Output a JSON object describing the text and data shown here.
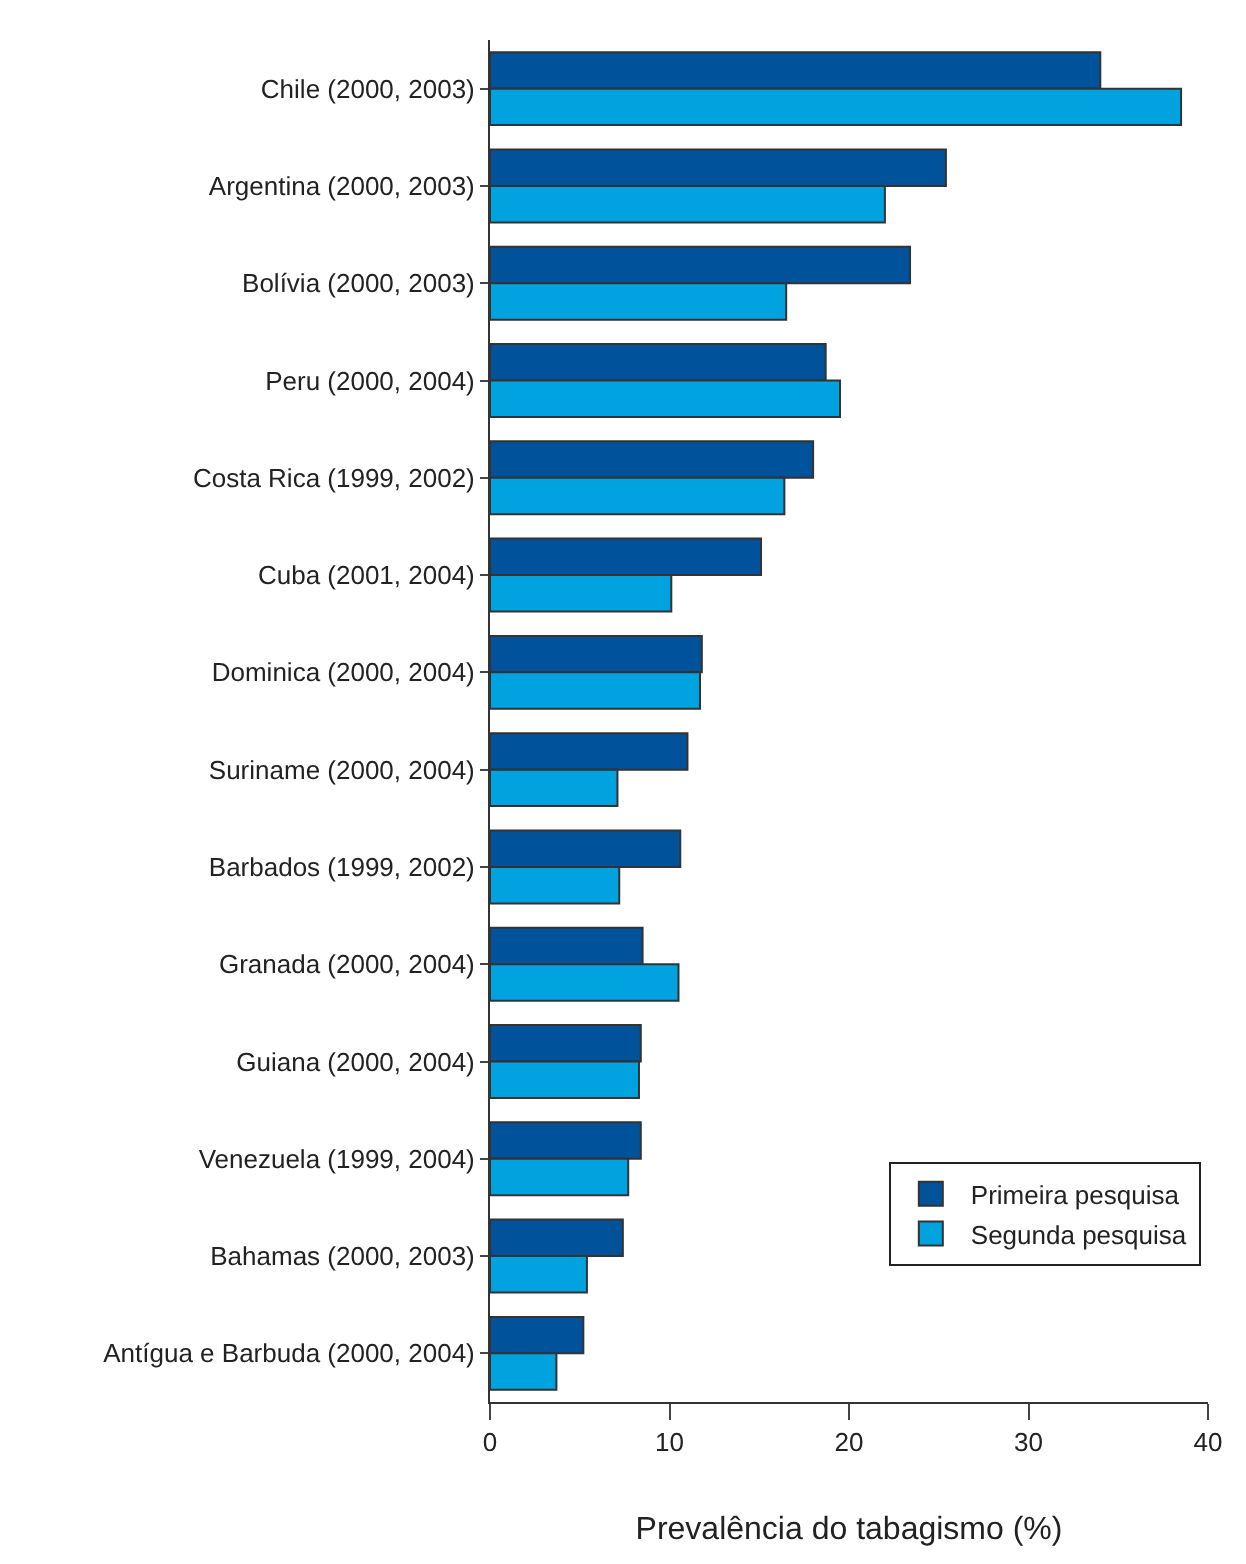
{
  "chart_data": {
    "type": "bar",
    "orientation": "horizontal",
    "xlabel": "Prevalência do tabagismo (%)",
    "categories": [
      "Chile (2000, 2003)",
      "Argentina (2000, 2003)",
      "Bolívia (2000, 2003)",
      "Peru (2000, 2004)",
      "Costa Rica (1999, 2002)",
      "Cuba (2001, 2004)",
      "Dominica (2000, 2004)",
      "Suriname (2000, 2004)",
      "Barbados (1999, 2002)",
      "Granada (2000, 2004)",
      "Guiana (2000, 2004)",
      "Venezuela (1999, 2004)",
      "Bahamas (2000, 2003)",
      "Antígua e Barbuda (2000, 2004)"
    ],
    "series": [
      {
        "name": "Primeira pesquisa",
        "color": "#00529b",
        "values": [
          34.0,
          25.4,
          23.4,
          18.7,
          18.0,
          15.1,
          11.8,
          11.0,
          10.6,
          8.5,
          8.4,
          8.4,
          7.4,
          5.2
        ]
      },
      {
        "name": "Segunda pesquisa",
        "color": "#00a3e0",
        "values": [
          38.5,
          22.0,
          16.5,
          19.5,
          16.4,
          10.1,
          11.7,
          7.1,
          7.2,
          10.5,
          8.3,
          7.7,
          5.4,
          3.7
        ]
      }
    ],
    "xlim": [
      0,
      40
    ],
    "xticks": [
      0,
      10,
      20,
      30,
      40
    ],
    "legend": "bottom right"
  }
}
